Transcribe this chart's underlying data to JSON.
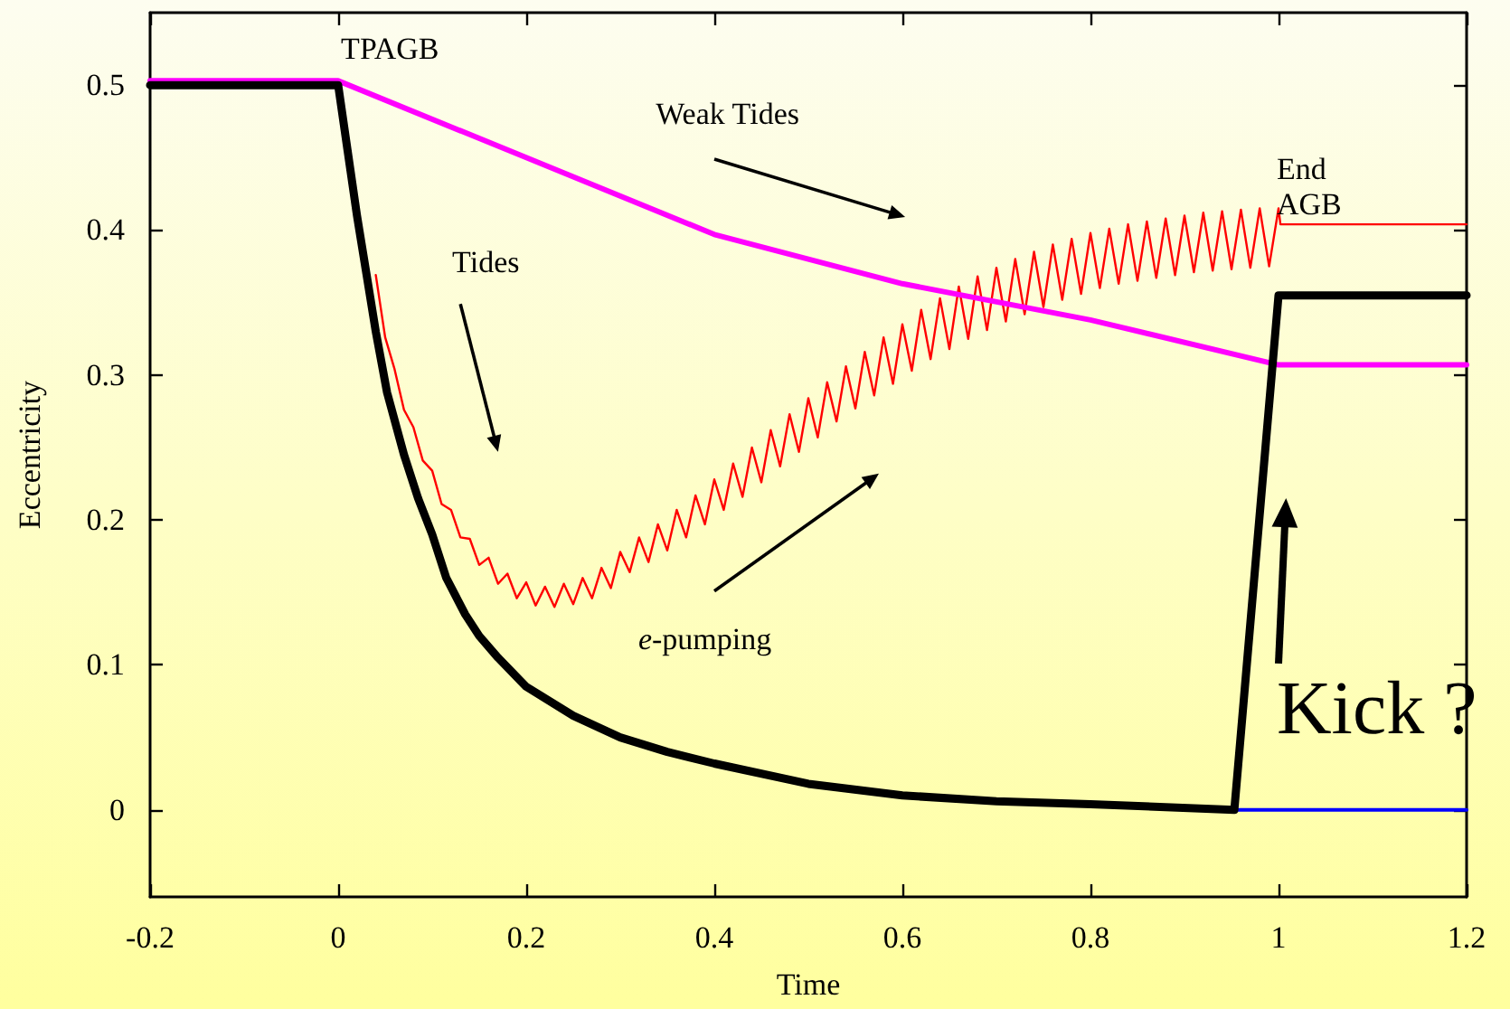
{
  "chart_data": {
    "type": "line",
    "xlabel": "Time",
    "ylabel": "Eccentricity",
    "xlim": [
      -0.2,
      1.2
    ],
    "xticks": [
      -0.2,
      0,
      0.2,
      0.4,
      0.6,
      0.8,
      1,
      1.2
    ],
    "ylim": [
      -0.06,
      0.55
    ],
    "yticks": [
      0,
      0.1,
      0.2,
      0.3,
      0.4,
      0.5
    ],
    "grid": false,
    "marker": "none",
    "line_style": "solid",
    "annotations": [
      "TPAGB",
      "Weak Tides",
      "End\nAGB",
      "Tides",
      "e-pumping",
      "Kick ?"
    ],
    "series": [
      {
        "color": "#0000ff",
        "x": [
          0.953,
          1.2
        ],
        "values": [
          0,
          0
        ]
      },
      {
        "color": "#ff0000",
        "x": [
          0.04,
          0.05,
          0.06,
          0.07,
          0.08,
          0.09,
          0.1,
          0.11,
          0.12,
          0.13,
          0.14,
          0.15,
          0.16,
          0.17,
          0.18,
          0.19,
          0.2,
          0.21,
          0.22,
          0.23,
          0.24,
          0.25,
          0.26,
          0.27,
          0.28,
          0.29,
          0.3,
          0.31,
          0.32,
          0.33,
          0.34,
          0.35,
          0.36,
          0.37,
          0.38,
          0.39,
          0.4,
          0.41,
          0.42,
          0.43,
          0.44,
          0.45,
          0.46,
          0.47,
          0.48,
          0.49,
          0.5,
          0.51,
          0.52,
          0.53,
          0.54,
          0.55,
          0.56,
          0.57,
          0.58,
          0.59,
          0.6,
          0.61,
          0.62,
          0.63,
          0.64,
          0.65,
          0.66,
          0.67,
          0.68,
          0.69,
          0.7,
          0.71,
          0.72,
          0.73,
          0.74,
          0.75,
          0.76,
          0.77,
          0.78,
          0.79,
          0.8,
          0.81,
          0.82,
          0.83,
          0.84,
          0.85,
          0.86,
          0.87,
          0.88,
          0.89,
          0.9,
          0.91,
          0.92,
          0.93,
          0.94,
          0.95,
          0.96,
          0.97,
          0.98,
          0.99,
          1.0,
          1.002,
          1.2
        ],
        "values": [
          0.369,
          0.326,
          0.304,
          0.276,
          0.264,
          0.241,
          0.234,
          0.211,
          0.207,
          0.188,
          0.187,
          0.169,
          0.174,
          0.156,
          0.163,
          0.146,
          0.157,
          0.141,
          0.154,
          0.14,
          0.156,
          0.142,
          0.16,
          0.146,
          0.167,
          0.153,
          0.178,
          0.164,
          0.188,
          0.171,
          0.197,
          0.179,
          0.207,
          0.188,
          0.217,
          0.197,
          0.228,
          0.207,
          0.239,
          0.216,
          0.25,
          0.226,
          0.262,
          0.237,
          0.273,
          0.247,
          0.284,
          0.257,
          0.295,
          0.268,
          0.306,
          0.277,
          0.316,
          0.286,
          0.326,
          0.294,
          0.335,
          0.303,
          0.345,
          0.311,
          0.353,
          0.318,
          0.361,
          0.325,
          0.368,
          0.331,
          0.374,
          0.337,
          0.38,
          0.342,
          0.385,
          0.347,
          0.39,
          0.352,
          0.394,
          0.356,
          0.398,
          0.36,
          0.401,
          0.363,
          0.404,
          0.365,
          0.406,
          0.367,
          0.408,
          0.369,
          0.41,
          0.371,
          0.412,
          0.372,
          0.413,
          0.373,
          0.414,
          0.374,
          0.415,
          0.375,
          0.415,
          0.404,
          0.404
        ]
      },
      {
        "color": "#ff00ff",
        "x": [
          -0.2,
          0,
          0.2,
          0.4,
          0.6,
          0.8,
          1.0,
          1.2
        ],
        "values": [
          0.503,
          0.503,
          0.45,
          0.397,
          0.363,
          0.338,
          0.307,
          0.307
        ]
      },
      {
        "color": "#000000",
        "x": [
          -0.2,
          0,
          0.01,
          0.02,
          0.03,
          0.04,
          0.052,
          0.07,
          0.085,
          0.1,
          0.115,
          0.135,
          0.15,
          0.17,
          0.2,
          0.25,
          0.3,
          0.35,
          0.4,
          0.5,
          0.6,
          0.7,
          0.8,
          0.953,
          1.0,
          1.2
        ],
        "values": [
          0.5,
          0.5,
          0.455,
          0.41,
          0.37,
          0.33,
          0.288,
          0.245,
          0.215,
          0.19,
          0.16,
          0.135,
          0.12,
          0.105,
          0.085,
          0.065,
          0.05,
          0.04,
          0.032,
          0.018,
          0.01,
          0.006,
          0.004,
          0,
          0.355,
          0.355
        ]
      }
    ]
  }
}
